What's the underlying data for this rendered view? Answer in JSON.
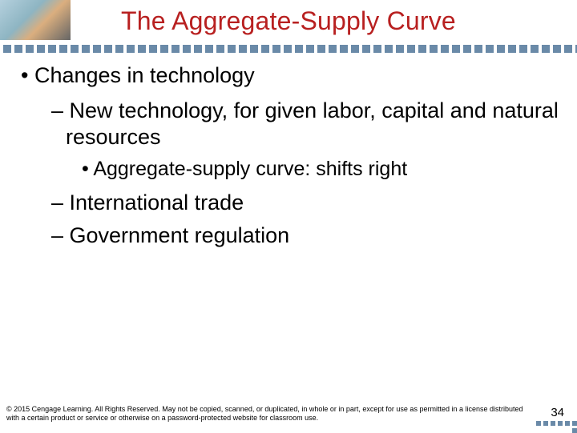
{
  "title": {
    "text": "The Aggregate-Supply Curve",
    "color": "#b82020",
    "fontsize": 32
  },
  "bullets": {
    "lvl1_1": "• Changes in technology",
    "lvl2_1": "– New technology, for given labor, capital and natural resources",
    "lvl3_1": "• Aggregate-supply curve: shifts right",
    "lvl2_2": "– International trade",
    "lvl2_3": "– Government regulation"
  },
  "footer": "© 2015 Cengage Learning. All Rights Reserved. May not be copied, scanned, or duplicated, in whole or in part, except for use as permitted in a license distributed with a certain product or service or otherwise on a password-protected website for classroom use.",
  "page_number": "34",
  "colors": {
    "title": "#b82020",
    "text": "#000000",
    "dots": "#6a8aa8",
    "background": "#ffffff"
  }
}
